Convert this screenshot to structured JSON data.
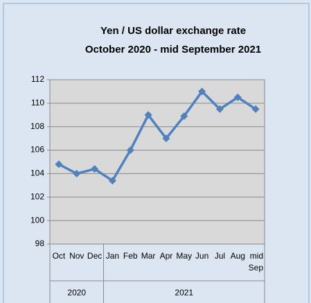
{
  "chart_data": {
    "type": "line",
    "title": "Yen / US dollar exchange rate",
    "subtitle": "October 2020 - mid September 2021",
    "categories": [
      "Oct",
      "Nov",
      "Dec",
      "Jan",
      "Feb",
      "Mar",
      "Apr",
      "May",
      "Jun",
      "Jul",
      "Aug",
      "mid Sep"
    ],
    "groups": [
      {
        "label": "2020",
        "span": 3
      },
      {
        "label": "2021",
        "span": 9
      }
    ],
    "values": [
      104.8,
      104.0,
      104.4,
      103.4,
      106.0,
      109.0,
      107.0,
      108.9,
      111.0,
      109.5,
      110.5,
      109.5
    ],
    "color": "#4f81bd",
    "ylim": [
      98,
      112
    ],
    "yticks": [
      98,
      100,
      102,
      104,
      106,
      108,
      110,
      112
    ],
    "grid": true
  }
}
